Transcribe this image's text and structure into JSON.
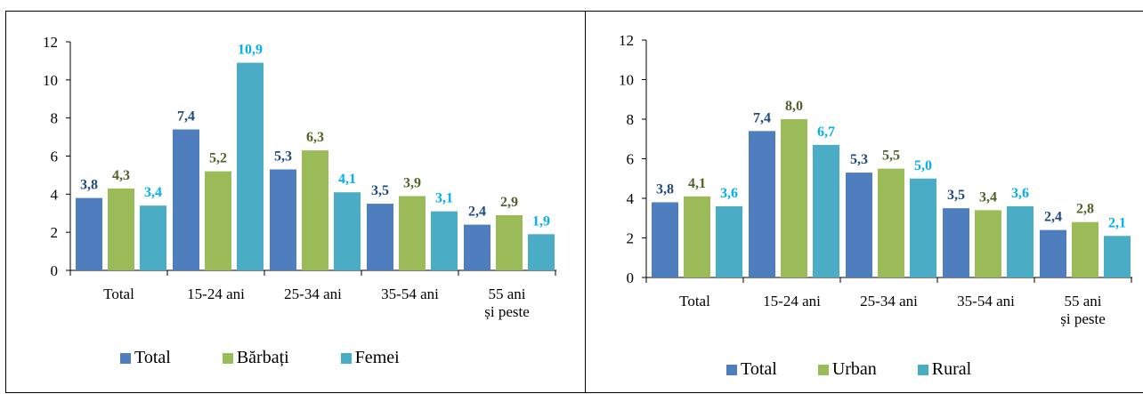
{
  "title": "",
  "colors": {
    "series1": "#4F7EBF",
    "series2": "#9BBB59",
    "series3": "#4BACC6",
    "label1": "#1F497D",
    "label2": "#4F6228",
    "label3": "#00B0F0"
  },
  "chart_data": [
    {
      "type": "bar",
      "categories": [
        "Total",
        "15-24 ani",
        "25-34 ani",
        "35-54 ani",
        "55 ani\nși peste"
      ],
      "series": [
        {
          "name": "Total",
          "values": [
            3.8,
            7.4,
            5.3,
            3.5,
            2.4
          ],
          "labels": [
            "3,8",
            "7,4",
            "5,3",
            "3,5",
            "2,4"
          ]
        },
        {
          "name": "Bărbați",
          "values": [
            4.3,
            5.2,
            6.3,
            3.9,
            2.9
          ],
          "labels": [
            "4,3",
            "5,2",
            "6,3",
            "3,9",
            "2,9"
          ]
        },
        {
          "name": "Femei",
          "values": [
            3.4,
            10.9,
            4.1,
            3.1,
            1.9
          ],
          "labels": [
            "3,4",
            "10,9",
            "4,1",
            "3,1",
            "1,9"
          ]
        }
      ],
      "yticks": [
        "0",
        "2",
        "4",
        "6",
        "8",
        "10",
        "12"
      ],
      "ylim": [
        0,
        12
      ],
      "legend_position": "bottom"
    },
    {
      "type": "bar",
      "categories": [
        "Total",
        "15-24 ani",
        "25-34 ani",
        "35-54 ani",
        "55 ani\nși peste"
      ],
      "series": [
        {
          "name": "Total",
          "values": [
            3.8,
            7.4,
            5.3,
            3.5,
            2.4
          ],
          "labels": [
            "3,8",
            "7,4",
            "5,3",
            "3,5",
            "2,4"
          ]
        },
        {
          "name": "Urban",
          "values": [
            4.1,
            8.0,
            5.5,
            3.4,
            2.8
          ],
          "labels": [
            "4,1",
            "8,0",
            "5,5",
            "3,4",
            "2,8"
          ]
        },
        {
          "name": "Rural",
          "values": [
            3.6,
            6.7,
            5.0,
            3.6,
            2.1
          ],
          "labels": [
            "3,6",
            "6,7",
            "5,0",
            "3,6",
            "2,1"
          ]
        }
      ],
      "yticks": [
        "0",
        "2",
        "4",
        "6",
        "8",
        "10",
        "12"
      ],
      "ylim": [
        0,
        12
      ],
      "legend_position": "bottom"
    }
  ]
}
